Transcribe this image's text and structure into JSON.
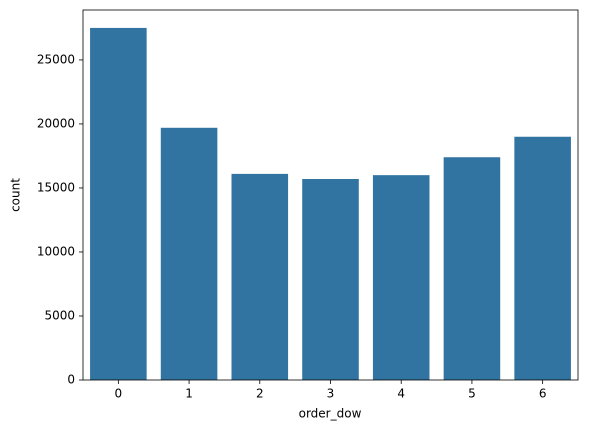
{
  "chart_data": {
    "type": "bar",
    "x_label": "order_dow",
    "y_label": "count",
    "categories": [
      "0",
      "1",
      "2",
      "3",
      "4",
      "5",
      "6"
    ],
    "values": [
      27500,
      19700,
      16100,
      15700,
      16000,
      17400,
      19000
    ],
    "color": "#3274a1",
    "ylim": [
      0,
      28900
    ],
    "yticks": [
      0,
      5000,
      10000,
      15000,
      20000,
      25000
    ],
    "grid": false
  }
}
